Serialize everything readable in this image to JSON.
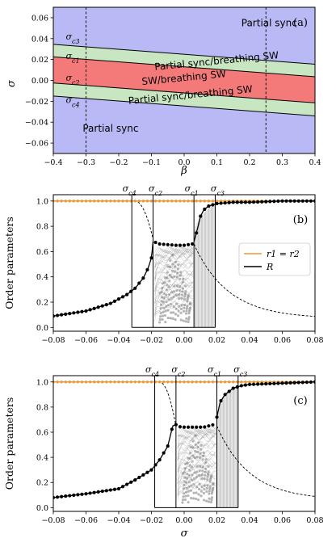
{
  "chart_data": [
    {
      "type": "area",
      "panel_label": "(a)",
      "xlabel": "β",
      "ylabel": "σ",
      "xlim": [
        -0.4,
        0.4
      ],
      "ylim": [
        -0.07,
        0.07
      ],
      "xticks": [
        -0.4,
        -0.3,
        -0.2,
        -0.1,
        0.0,
        0.1,
        0.2,
        0.3,
        0.4
      ],
      "yticks": [
        -0.06,
        -0.04,
        -0.02,
        0.0,
        0.02,
        0.04,
        0.06
      ],
      "xtick_labels": [
        "−0.4",
        "−0.3",
        "−0.2",
        "−0.1",
        "0.0",
        "0.1",
        "0.2",
        "0.3",
        "0.4"
      ],
      "ytick_labels": [
        "−0.06",
        "−0.04",
        "−0.02",
        "0.00",
        "0.02",
        "0.04",
        "0.06"
      ],
      "boundaries": [
        {
          "name": "σc3",
          "label_main": "σ",
          "label_sub": "c3",
          "beta": [
            -0.4,
            0.4
          ],
          "sigma": [
            0.0345,
            0.0155
          ]
        },
        {
          "name": "σc1",
          "label_main": "σ",
          "label_sub": "c1",
          "beta": [
            -0.4,
            0.4
          ],
          "sigma": [
            0.0225,
            0.0035
          ]
        },
        {
          "name": "σc2",
          "label_main": "σ",
          "label_sub": "c2",
          "beta": [
            -0.4,
            0.4
          ],
          "sigma": [
            -0.0025,
            -0.0215
          ]
        },
        {
          "name": "σc4",
          "label_main": "σ",
          "label_sub": "c4",
          "beta": [
            -0.4,
            0.4
          ],
          "sigma": [
            -0.015,
            -0.034
          ]
        }
      ],
      "regions": [
        {
          "label": "Partial sync",
          "color": "#b9b9f5"
        },
        {
          "label": "Partial sync/breathing SW",
          "color": "#c8e6c2"
        },
        {
          "label": "SW/breathing SW",
          "color": "#f47a7a"
        },
        {
          "label": "Partial sync/breathing SW",
          "color": "#c8e6c2"
        },
        {
          "label": "Partial sync",
          "color": "#b9b9f5"
        }
      ],
      "vlines": [
        -0.3,
        0.25
      ]
    },
    {
      "type": "line",
      "panel_label": "(b)",
      "xlabel": "",
      "ylabel": "Order parameters",
      "xlim": [
        -0.08,
        0.08
      ],
      "ylim": [
        -0.03,
        1.05
      ],
      "xticks": [
        -0.08,
        -0.06,
        -0.04,
        -0.02,
        0.0,
        0.02,
        0.04,
        0.06,
        0.08
      ],
      "yticks": [
        0.0,
        0.2,
        0.4,
        0.6,
        0.8,
        1.0
      ],
      "xtick_labels": [
        "−0.08",
        "−0.06",
        "−0.04",
        "−0.02",
        "0.00",
        "0.02",
        "0.04",
        "0.06",
        "0.08"
      ],
      "ytick_labels": [
        "0.0",
        "0.2",
        "0.4",
        "0.6",
        "0.8",
        "1.0"
      ],
      "critical_points": [
        {
          "label_main": "σ",
          "label_sub": "c4",
          "x": -0.032
        },
        {
          "label_main": "σ",
          "label_sub": "c2",
          "x": -0.019
        },
        {
          "label_main": "σ",
          "label_sub": "c1",
          "x": 0.006
        },
        {
          "label_main": "σ",
          "label_sub": "c3",
          "x": 0.019
        }
      ],
      "legend": {
        "position": "center-right",
        "entries": [
          {
            "label": "r1 = r2",
            "color": "#e8993a"
          },
          {
            "label": "R",
            "color": "#000000"
          }
        ]
      },
      "series": [
        {
          "name": "r1 = r2",
          "color": "#e8993a",
          "x": [
            -0.08,
            0.08
          ],
          "y": [
            1.0,
            1.0
          ]
        },
        {
          "name": "R",
          "color": "#000000",
          "x": [
            -0.08,
            -0.06,
            -0.045,
            -0.035,
            -0.03,
            -0.025,
            -0.022,
            -0.02,
            -0.019,
            -0.015,
            -0.005,
            0.0,
            0.005,
            0.006,
            0.008,
            0.01,
            0.012,
            0.015,
            0.02,
            0.03,
            0.04,
            0.06,
            0.08
          ],
          "y": [
            0.09,
            0.13,
            0.19,
            0.26,
            0.31,
            0.39,
            0.47,
            0.55,
            0.68,
            0.66,
            0.65,
            0.65,
            0.66,
            0.68,
            0.77,
            0.88,
            0.93,
            0.96,
            0.98,
            0.99,
            0.99,
            1.0,
            1.0
          ]
        }
      ]
    },
    {
      "type": "line",
      "panel_label": "(c)",
      "xlabel": "σ",
      "ylabel": "Order parameters",
      "xlim": [
        -0.08,
        0.08
      ],
      "ylim": [
        -0.03,
        1.05
      ],
      "xticks": [
        -0.08,
        -0.06,
        -0.04,
        -0.02,
        0.0,
        0.02,
        0.04,
        0.06,
        0.08
      ],
      "yticks": [
        0.0,
        0.2,
        0.4,
        0.6,
        0.8,
        1.0
      ],
      "xtick_labels": [
        "−0.08",
        "−0.06",
        "−0.04",
        "−0.02",
        "0.00",
        "0.02",
        "0.04",
        "0.06",
        "0.08"
      ],
      "ytick_labels": [
        "0.0",
        "0.2",
        "0.4",
        "0.6",
        "0.8",
        "1.0"
      ],
      "critical_points": [
        {
          "label_main": "σ",
          "label_sub": "c4",
          "x": -0.018
        },
        {
          "label_main": "σ",
          "label_sub": "c2",
          "x": -0.005
        },
        {
          "label_main": "σ",
          "label_sub": "c1",
          "x": 0.02
        },
        {
          "label_main": "σ",
          "label_sub": "c3",
          "x": 0.033
        }
      ],
      "series": [
        {
          "name": "r1 = r2",
          "color": "#e8993a",
          "x": [
            -0.08,
            0.08
          ],
          "y": [
            1.0,
            1.0
          ]
        },
        {
          "name": "R",
          "color": "#000000",
          "x": [
            -0.08,
            -0.06,
            -0.04,
            -0.03,
            -0.02,
            -0.015,
            -0.01,
            -0.007,
            -0.005,
            -0.002,
            0.005,
            0.012,
            0.018,
            0.02,
            0.022,
            0.025,
            0.03,
            0.035,
            0.04,
            0.06,
            0.08
          ],
          "y": [
            0.08,
            0.11,
            0.15,
            0.22,
            0.3,
            0.38,
            0.49,
            0.65,
            0.66,
            0.64,
            0.64,
            0.64,
            0.66,
            0.72,
            0.84,
            0.9,
            0.95,
            0.97,
            0.98,
            0.99,
            1.0
          ]
        }
      ]
    }
  ]
}
